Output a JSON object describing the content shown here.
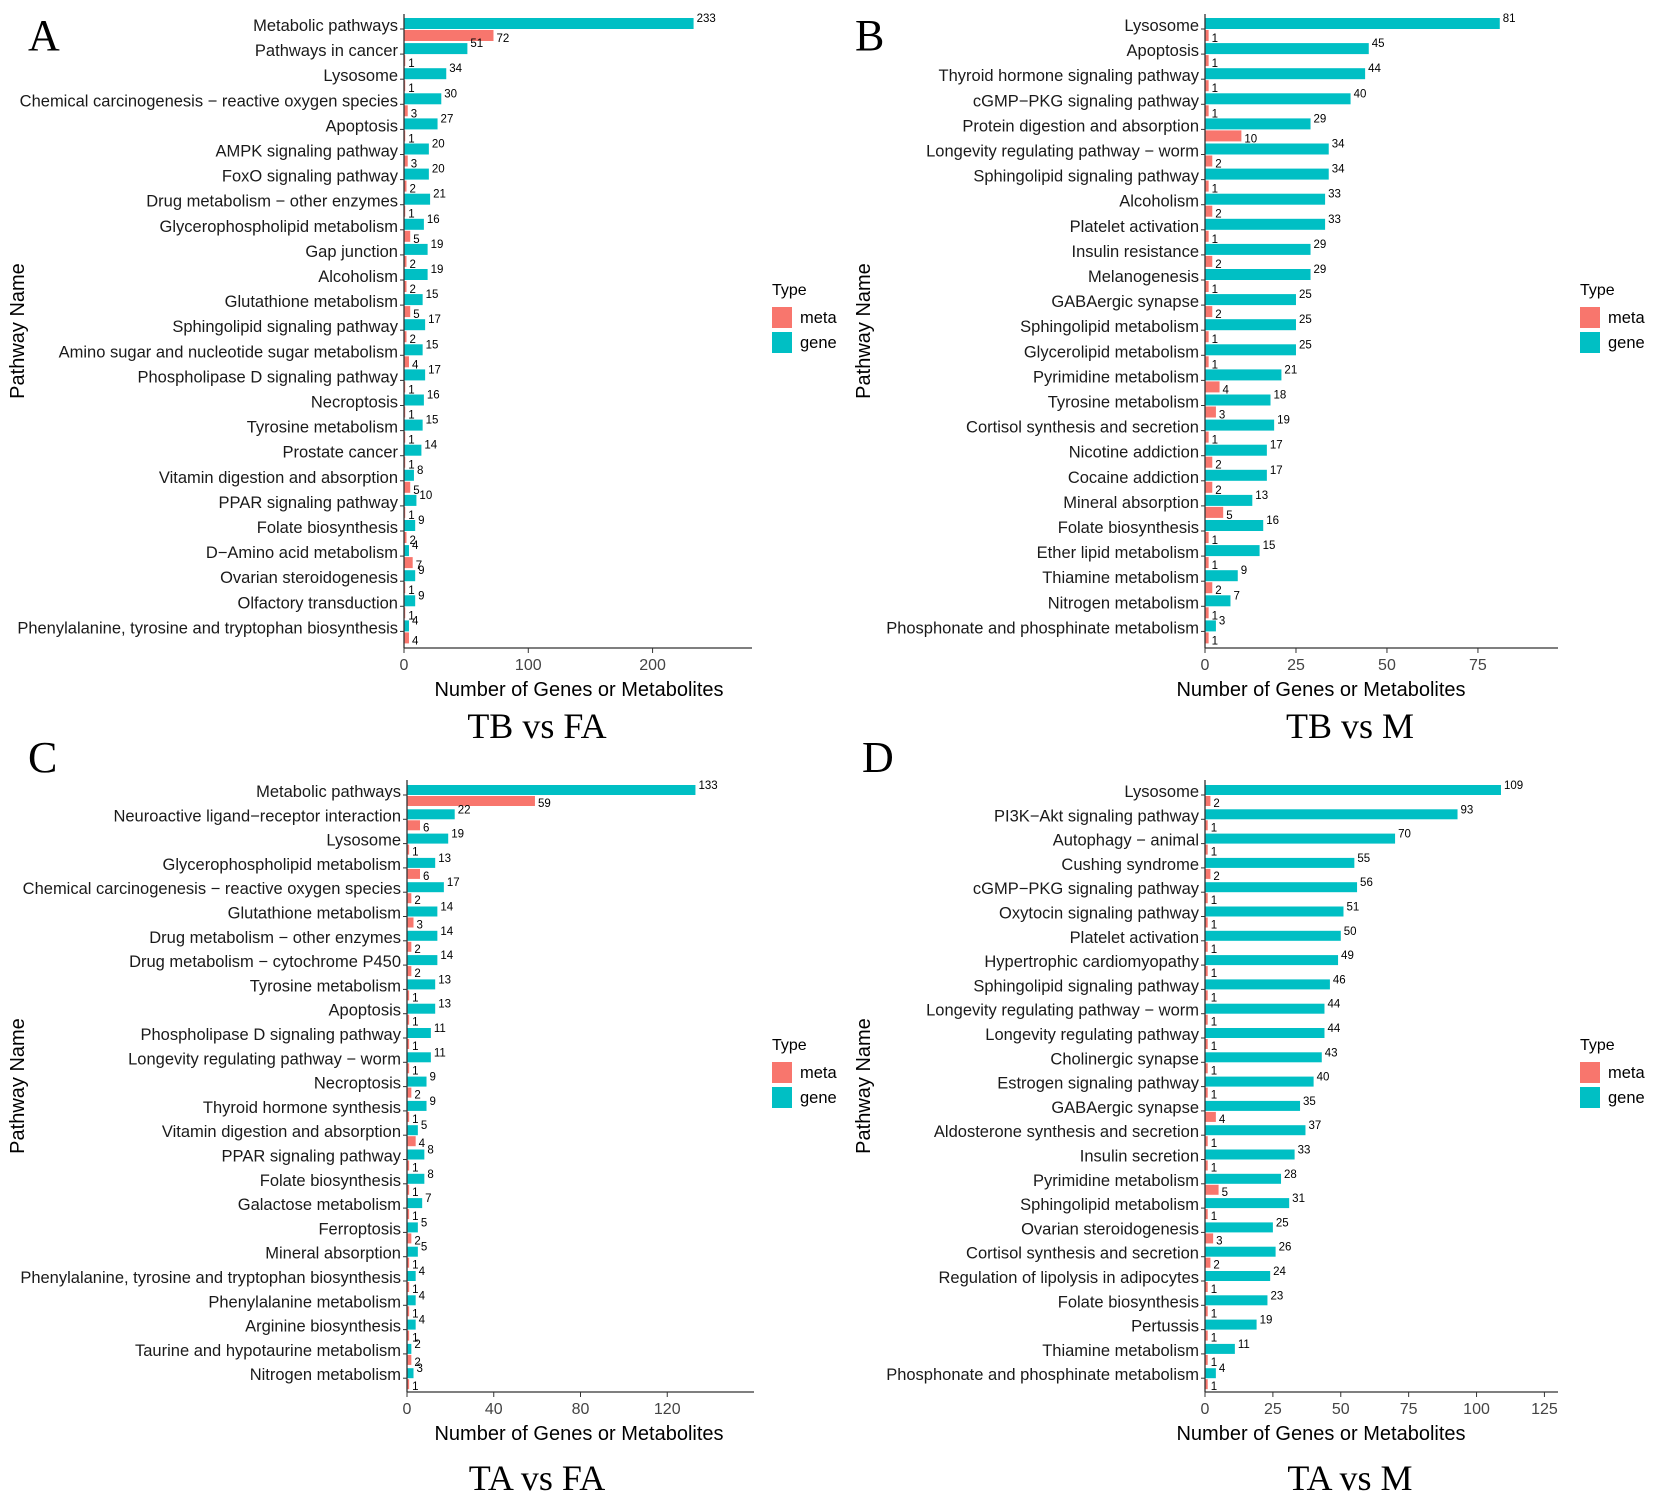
{
  "legend_title": "Type",
  "legend_items": [
    {
      "label": "meta",
      "color": "#F8766D"
    },
    {
      "label": "gene",
      "color": "#00BFC4"
    }
  ],
  "chart_data": [
    {
      "type": "bar",
      "panel_letter": "A",
      "title": "TB vs FA",
      "xlabel": "Number of Genes or Metabolites",
      "ylabel": "Pathway Name",
      "xlim": [
        0,
        280
      ],
      "xticks": [
        0,
        100,
        200
      ],
      "legend_position": "right",
      "categories": [
        "Metabolic pathways",
        "Pathways in cancer",
        "Lysosome",
        "Chemical carcinogenesis − reactive oxygen species",
        "Apoptosis",
        "AMPK signaling pathway",
        "FoxO signaling pathway",
        "Drug metabolism − other enzymes",
        "Glycerophospholipid metabolism",
        "Gap junction",
        "Alcoholism",
        "Glutathione metabolism",
        "Sphingolipid signaling pathway",
        "Amino sugar and nucleotide sugar metabolism",
        "Phospholipase D signaling pathway",
        "Necroptosis",
        "Tyrosine metabolism",
        "Prostate cancer",
        "Vitamin digestion and absorption",
        "PPAR signaling pathway",
        "Folate biosynthesis",
        "D−Amino acid metabolism",
        "Ovarian steroidogenesis",
        "Olfactory transduction",
        "Phenylalanine, tyrosine and tryptophan biosynthesis"
      ],
      "series": [
        {
          "name": "gene",
          "values": [
            233,
            51,
            34,
            30,
            27,
            20,
            20,
            21,
            16,
            19,
            19,
            15,
            17,
            15,
            17,
            16,
            15,
            14,
            8,
            10,
            9,
            4,
            9,
            9,
            4
          ]
        },
        {
          "name": "meta",
          "values": [
            72,
            1,
            1,
            3,
            1,
            3,
            2,
            1,
            5,
            2,
            2,
            5,
            2,
            4,
            1,
            1,
            1,
            1,
            5,
            1,
            2,
            7,
            1,
            1,
            4
          ]
        }
      ]
    },
    {
      "type": "bar",
      "panel_letter": "B",
      "title": "TB vs M",
      "xlabel": "Number of Genes or Metabolites",
      "ylabel": "Pathway Name",
      "xlim": [
        0,
        97
      ],
      "xticks": [
        0,
        25,
        50,
        75
      ],
      "legend_position": "right",
      "categories": [
        "Lysosome",
        "Apoptosis",
        "Thyroid hormone signaling pathway",
        "cGMP−PKG signaling pathway",
        "Protein digestion and absorption",
        "Longevity regulating pathway − worm",
        "Sphingolipid signaling pathway",
        "Alcoholism",
        "Platelet activation",
        "Insulin resistance",
        "Melanogenesis",
        "GABAergic synapse",
        "Sphingolipid metabolism",
        "Glycerolipid metabolism",
        "Pyrimidine metabolism",
        "Tyrosine metabolism",
        "Cortisol synthesis and secretion",
        "Nicotine addiction",
        "Cocaine addiction",
        "Mineral absorption",
        "Folate biosynthesis",
        "Ether lipid metabolism",
        "Thiamine metabolism",
        "Nitrogen metabolism",
        "Phosphonate and phosphinate metabolism"
      ],
      "series": [
        {
          "name": "gene",
          "values": [
            81,
            45,
            44,
            40,
            29,
            34,
            34,
            33,
            33,
            29,
            29,
            25,
            25,
            25,
            21,
            18,
            19,
            17,
            17,
            13,
            16,
            15,
            9,
            7,
            3
          ]
        },
        {
          "name": "meta",
          "values": [
            1,
            1,
            1,
            1,
            10,
            2,
            1,
            2,
            1,
            2,
            1,
            2,
            1,
            1,
            4,
            3,
            1,
            2,
            2,
            5,
            1,
            1,
            2,
            1,
            1
          ]
        }
      ]
    },
    {
      "type": "bar",
      "panel_letter": "C",
      "title": "TA vs FA",
      "xlabel": "Number of Genes or Metabolites",
      "ylabel": "Pathway Name",
      "xlim": [
        0,
        160
      ],
      "xticks": [
        0,
        40,
        80,
        120
      ],
      "legend_position": "right",
      "categories": [
        "Metabolic pathways",
        "Neuroactive ligand−receptor interaction",
        "Lysosome",
        "Glycerophospholipid metabolism",
        "Chemical carcinogenesis − reactive oxygen species",
        "Glutathione metabolism",
        "Drug metabolism − other enzymes",
        "Drug metabolism − cytochrome P450",
        "Tyrosine metabolism",
        "Apoptosis",
        "Phospholipase D signaling pathway",
        "Longevity regulating pathway − worm",
        "Necroptosis",
        "Thyroid hormone synthesis",
        "Vitamin digestion and absorption",
        "PPAR signaling pathway",
        "Folate biosynthesis",
        "Galactose metabolism",
        "Ferroptosis",
        "Mineral absorption",
        "Phenylalanine, tyrosine and tryptophan biosynthesis",
        "Phenylalanine metabolism",
        "Arginine biosynthesis",
        "Taurine and hypotaurine metabolism",
        "Nitrogen metabolism"
      ],
      "series": [
        {
          "name": "gene",
          "values": [
            133,
            22,
            19,
            13,
            17,
            14,
            14,
            14,
            13,
            13,
            11,
            11,
            9,
            9,
            5,
            8,
            8,
            7,
            5,
            5,
            4,
            4,
            4,
            2,
            3
          ]
        },
        {
          "name": "meta",
          "values": [
            59,
            6,
            1,
            6,
            2,
            3,
            2,
            2,
            1,
            1,
            1,
            1,
            2,
            1,
            4,
            1,
            1,
            1,
            2,
            1,
            1,
            1,
            1,
            2,
            1
          ]
        }
      ]
    },
    {
      "type": "bar",
      "panel_letter": "D",
      "title": "TA vs M",
      "xlabel": "Number of Genes or Metabolites",
      "ylabel": "Pathway Name",
      "xlim": [
        0,
        130
      ],
      "xticks": [
        0,
        25,
        50,
        75,
        100,
        125
      ],
      "legend_position": "right",
      "categories": [
        "Lysosome",
        "PI3K−Akt signaling pathway",
        "Autophagy − animal",
        "Cushing syndrome",
        "cGMP−PKG signaling pathway",
        "Oxytocin signaling pathway",
        "Platelet activation",
        "Hypertrophic cardiomyopathy",
        "Sphingolipid signaling pathway",
        "Longevity regulating pathway − worm",
        "Longevity regulating pathway",
        "Cholinergic synapse",
        "Estrogen signaling pathway",
        "GABAergic synapse",
        "Aldosterone synthesis and secretion",
        "Insulin secretion",
        "Pyrimidine metabolism",
        "Sphingolipid metabolism",
        "Ovarian steroidogenesis",
        "Cortisol synthesis and secretion",
        "Regulation of lipolysis in adipocytes",
        "Folate biosynthesis",
        "Pertussis",
        "Thiamine metabolism",
        "Phosphonate and phosphinate metabolism"
      ],
      "series": [
        {
          "name": "gene",
          "values": [
            109,
            93,
            70,
            55,
            56,
            51,
            50,
            49,
            46,
            44,
            44,
            43,
            40,
            35,
            37,
            33,
            28,
            31,
            25,
            26,
            24,
            23,
            19,
            11,
            4
          ]
        },
        {
          "name": "meta",
          "values": [
            2,
            1,
            1,
            2,
            1,
            1,
            1,
            1,
            1,
            1,
            1,
            1,
            1,
            4,
            1,
            1,
            5,
            1,
            3,
            2,
            1,
            1,
            1,
            1,
            1
          ]
        }
      ]
    }
  ]
}
